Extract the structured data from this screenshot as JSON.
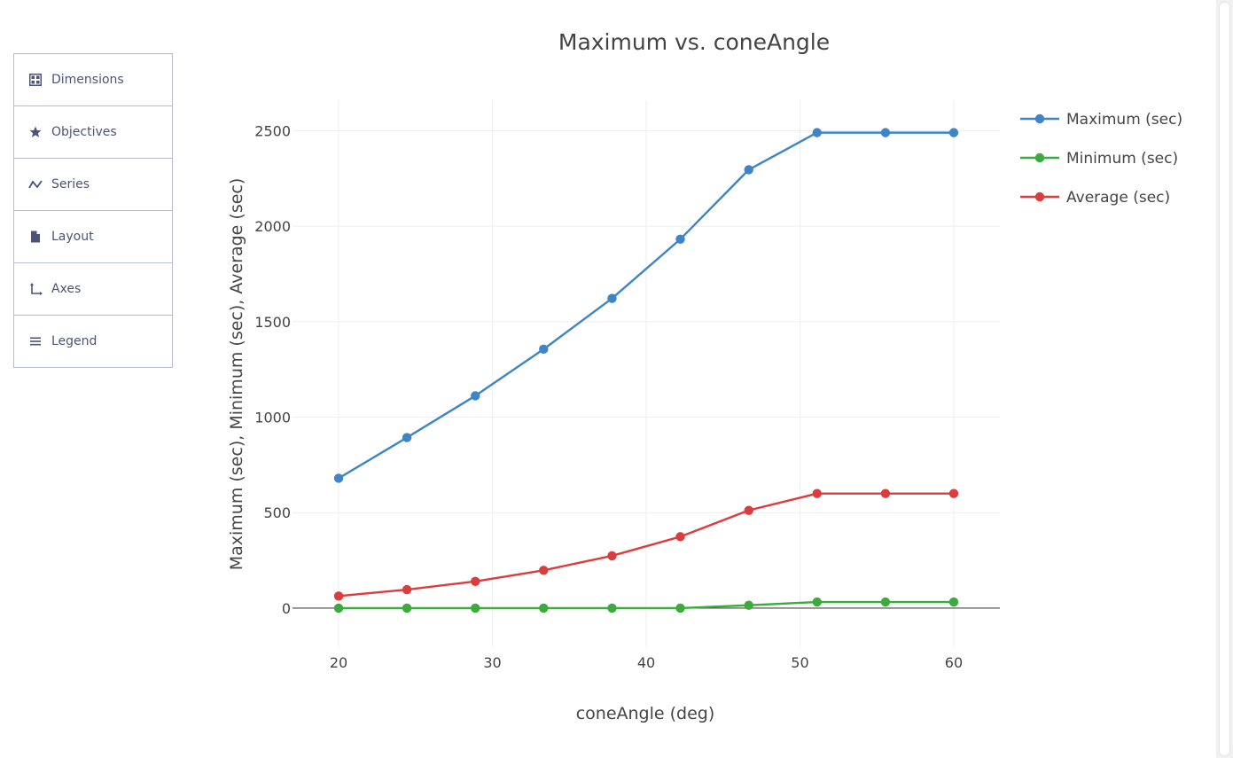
{
  "sidebar": {
    "items": [
      {
        "label": "Dimensions",
        "icon": "grid-icon"
      },
      {
        "label": "Objectives",
        "icon": "star-icon"
      },
      {
        "label": "Series",
        "icon": "series-icon"
      },
      {
        "label": "Layout",
        "icon": "file-icon"
      },
      {
        "label": "Axes",
        "icon": "axes-icon"
      },
      {
        "label": "Legend",
        "icon": "list-icon"
      }
    ]
  },
  "chart_data": {
    "type": "line",
    "title": "Maximum vs. coneAngle",
    "xlabel": "coneAngle (deg)",
    "ylabel": "Maximum (sec), Minimum (sec), Average (sec)",
    "xlim": [
      17,
      63
    ],
    "ylim": [
      -200,
      2660
    ],
    "x_ticks": [
      20,
      30,
      40,
      50,
      60
    ],
    "y_ticks": [
      0,
      500,
      1000,
      1500,
      2000,
      2500
    ],
    "grid": true,
    "legend_position": "top-right",
    "x": [
      20,
      24.44,
      28.89,
      33.33,
      37.78,
      42.22,
      46.67,
      51.11,
      55.56,
      60
    ],
    "series": [
      {
        "name": "Maximum (sec)",
        "color": "#3d85c6",
        "values": [
          680,
          893,
          1112,
          1356,
          1622,
          1932,
          2296,
          2490,
          2490,
          2490
        ]
      },
      {
        "name": "Minimum (sec)",
        "color": "#3caa3c",
        "values": [
          0,
          0,
          0,
          0,
          0,
          0,
          15,
          32,
          32,
          32
        ]
      },
      {
        "name": "Average (sec)",
        "color": "#dc3c3c",
        "values": [
          63,
          97,
          140,
          198,
          274,
          374,
          512,
          600,
          600,
          600
        ]
      }
    ]
  }
}
